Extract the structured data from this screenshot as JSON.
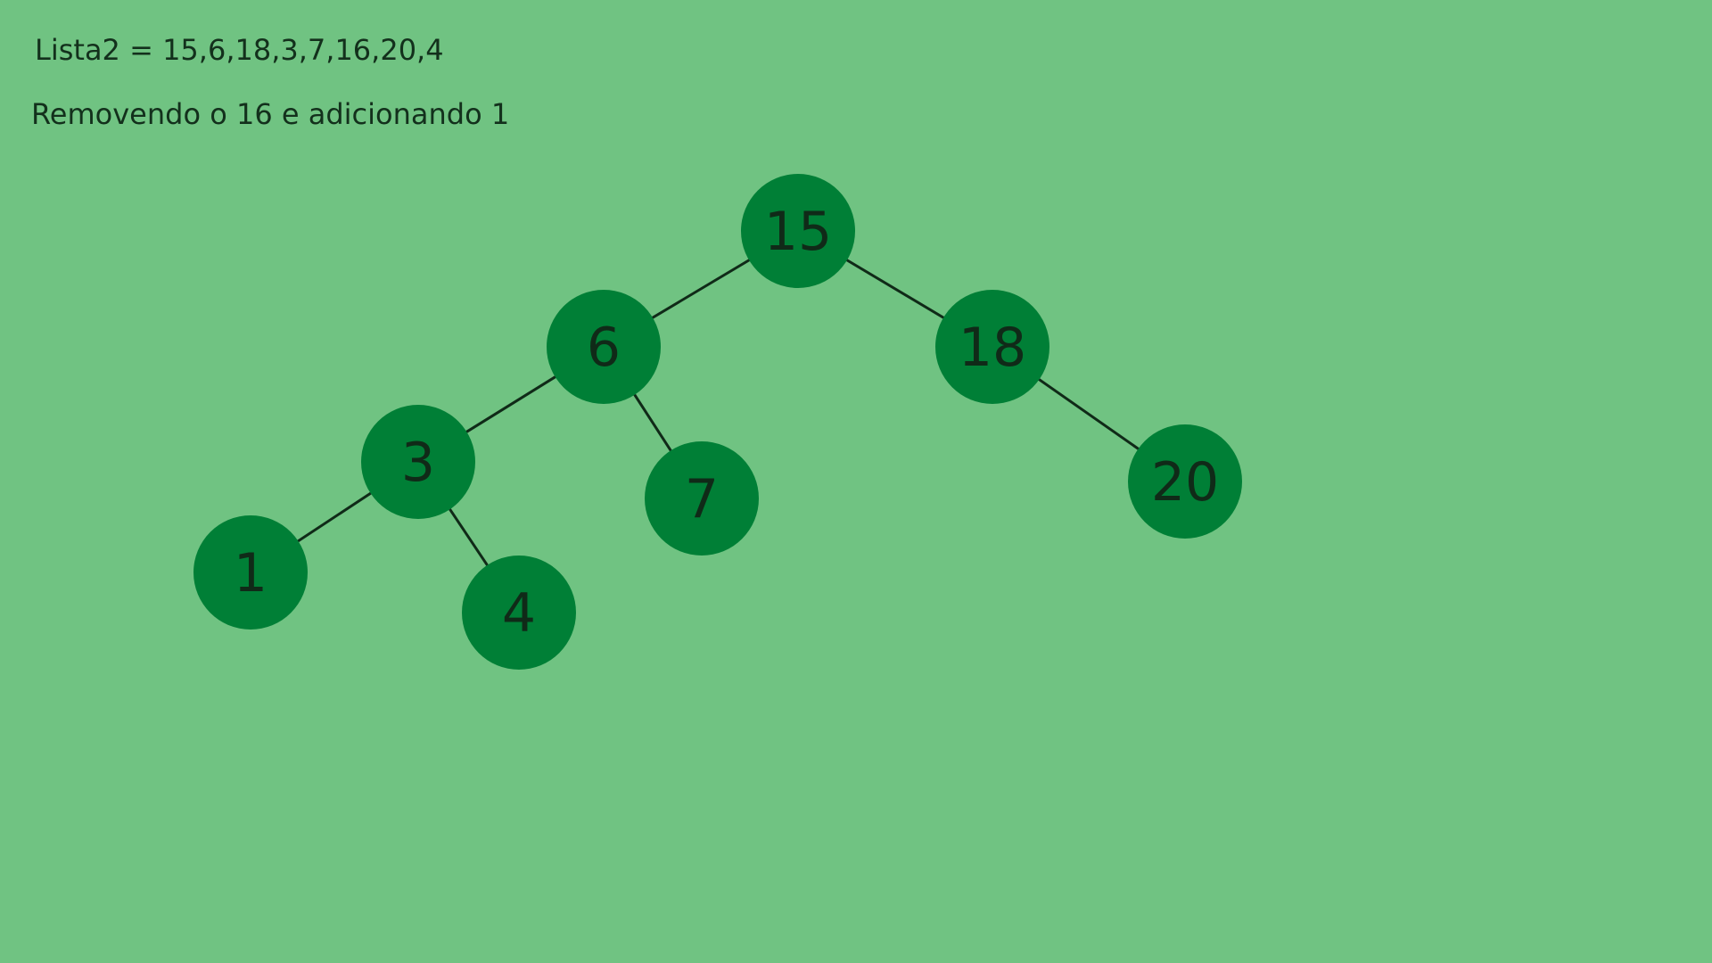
{
  "captions": {
    "list": "Lista2 = 15,6,18,3,7,16,20,4",
    "operation": "Removendo o 16 e adicionando 1"
  },
  "colors": {
    "background": "#70c382",
    "node_fill": "#007f36",
    "edge_stroke": "#102a18",
    "text": "#102a18"
  },
  "tree": {
    "nodes": [
      {
        "id": "n15",
        "label": "15"
      },
      {
        "id": "n6",
        "label": "6"
      },
      {
        "id": "n18",
        "label": "18"
      },
      {
        "id": "n3",
        "label": "3"
      },
      {
        "id": "n7",
        "label": "7"
      },
      {
        "id": "n20",
        "label": "20"
      },
      {
        "id": "n1",
        "label": "1"
      },
      {
        "id": "n4",
        "label": "4"
      }
    ],
    "edges": [
      {
        "from": "n15",
        "to": "n6"
      },
      {
        "from": "n15",
        "to": "n18"
      },
      {
        "from": "n6",
        "to": "n3"
      },
      {
        "from": "n6",
        "to": "n7"
      },
      {
        "from": "n18",
        "to": "n20"
      },
      {
        "from": "n3",
        "to": "n1"
      },
      {
        "from": "n3",
        "to": "n4"
      }
    ]
  }
}
